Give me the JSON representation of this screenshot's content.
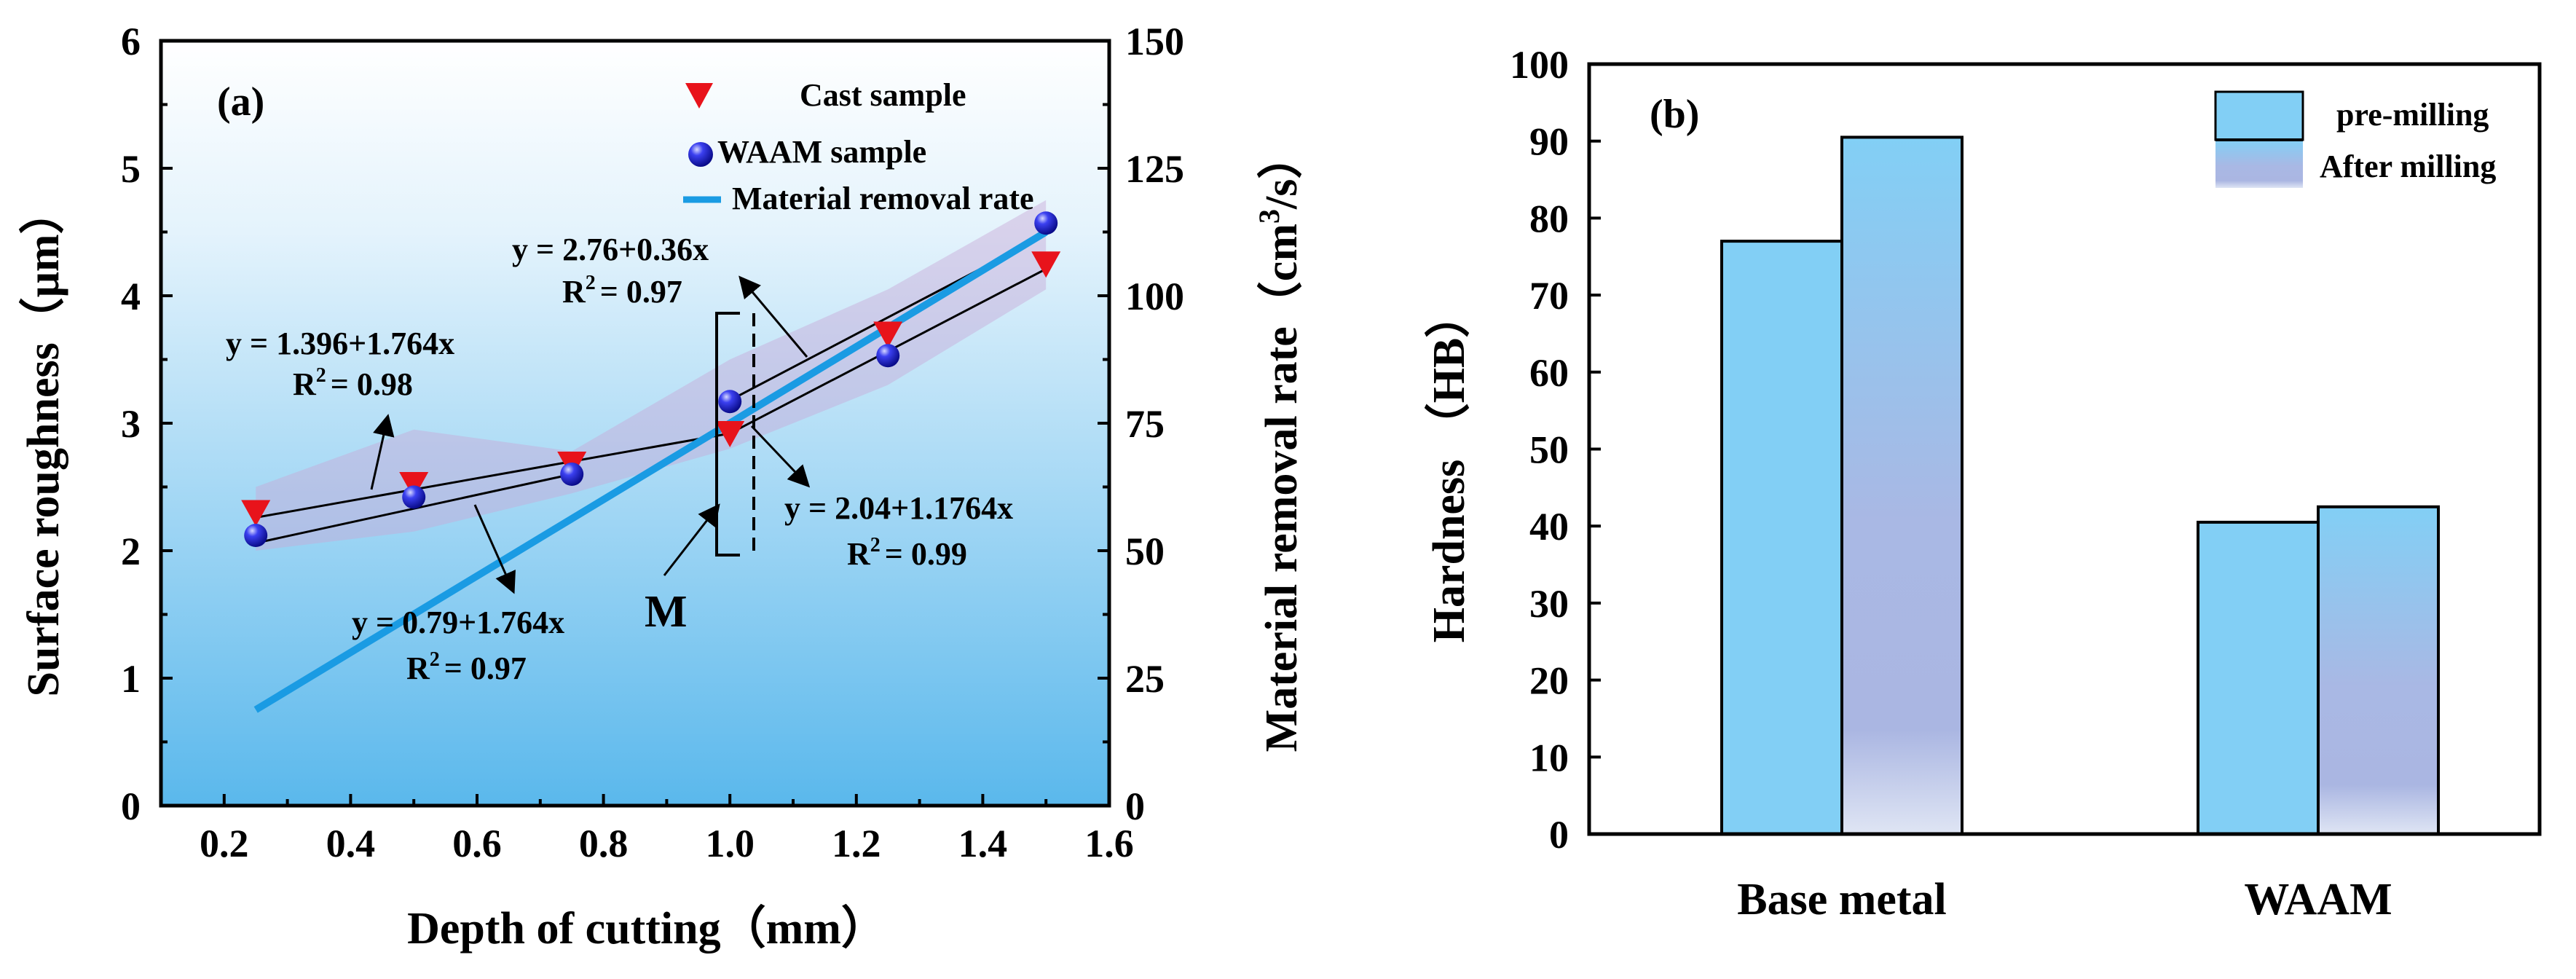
{
  "chart_data": [
    {
      "id": "a",
      "type": "scatter",
      "panel_label": "(a)",
      "xlabel": "Depth of cutting（mm）",
      "ylabel_left": "Surface roughness（μm）",
      "ylabel_right_main": "Material removal rate（cm",
      "ylabel_right_sup": "3",
      "ylabel_right_end": "/s）",
      "xlim": [
        0.1,
        1.6
      ],
      "ylim_left": [
        0,
        6
      ],
      "ylim_right": [
        0,
        150
      ],
      "x_ticks": [
        "0.2",
        "0.4",
        "0.6",
        "0.8",
        "1.0",
        "1.2",
        "1.4",
        "1.6"
      ],
      "x_tick_values": [
        0.2,
        0.4,
        0.6,
        0.8,
        1.0,
        1.2,
        1.4,
        1.6
      ],
      "y_left_ticks": [
        "0",
        "1",
        "2",
        "3",
        "4",
        "5",
        "6"
      ],
      "y_left_tick_values": [
        0,
        1,
        2,
        3,
        4,
        5,
        6
      ],
      "y_right_ticks": [
        "0",
        "25",
        "50",
        "75",
        "100",
        "125",
        "150"
      ],
      "y_right_tick_values": [
        0,
        25,
        50,
        75,
        100,
        125,
        150
      ],
      "series": [
        {
          "name": "Cast  sample",
          "marker": "triangle-down",
          "color": "#e8131b",
          "x": [
            0.25,
            0.5,
            0.75,
            1.0,
            1.25,
            1.5
          ],
          "y": [
            2.3,
            2.52,
            2.68,
            2.92,
            3.7,
            4.25
          ]
        },
        {
          "name": "WAAM sample",
          "marker": "circle",
          "color": "#2a2ee0",
          "x": [
            0.25,
            0.5,
            0.75,
            1.0,
            1.25,
            1.5
          ],
          "y": [
            2.12,
            2.42,
            2.6,
            3.17,
            3.53,
            4.57
          ]
        },
        {
          "name": "Material removal rate",
          "marker": "line",
          "color": "#1a9be3",
          "axis": "right",
          "x": [
            0.25,
            1.5
          ],
          "y": [
            18.8,
            112.5
          ]
        }
      ],
      "fit_lines": [
        {
          "x": [
            0.25,
            1.0
          ],
          "y": [
            2.26,
            2.92
          ]
        },
        {
          "x": [
            0.25,
            0.75
          ],
          "y": [
            2.06,
            2.6
          ]
        },
        {
          "x": [
            1.0,
            1.5
          ],
          "y": [
            3.18,
            4.48
          ]
        },
        {
          "x": [
            1.0,
            1.5
          ],
          "y": [
            2.92,
            4.21
          ]
        }
      ],
      "band": {
        "x": [
          0.25,
          0.5,
          0.75,
          1.0,
          1.25,
          1.5
        ],
        "upper": [
          2.5,
          2.95,
          2.78,
          3.5,
          4.05,
          4.75
        ],
        "lower": [
          2.0,
          2.15,
          2.45,
          2.8,
          3.3,
          4.05
        ]
      },
      "annotations": {
        "eq1": "y = 1.396+1.764x",
        "eq1_r2_main": "R",
        "eq1_r2_sup": "2",
        "eq1_r2_end": "= 0.98",
        "eq2": "y = 0.79+1.764x",
        "eq2_r2_main": "R",
        "eq2_r2_sup": "2",
        "eq2_r2_end": "= 0.97",
        "eq3": "y = 2.76+0.36x",
        "eq3_r2_main": "R",
        "eq3_r2_sup": "2",
        "eq3_r2_end": "= 0.97",
        "eq4": "y = 2.04+1.1764x",
        "eq4_r2_main": "R",
        "eq4_r2_sup": "2",
        "eq4_r2_end": "= 0.99",
        "m_label": "M"
      },
      "colors": {
        "bg_top": "#ffffff",
        "bg_bottom": "#5ab8ec"
      }
    },
    {
      "id": "b",
      "type": "bar",
      "panel_label": "(b)",
      "ylabel": "Hardness （HB）",
      "categories": [
        "Base metal",
        "WAAM"
      ],
      "series": [
        {
          "name": "pre-milling",
          "values": [
            77,
            40.5
          ],
          "color": "#82cff5"
        },
        {
          "name": "After milling",
          "values": [
            90.5,
            42.5
          ],
          "color": "#a9b8e4"
        }
      ],
      "ylim": [
        0,
        100
      ],
      "y_ticks": [
        "0",
        "10",
        "20",
        "30",
        "40",
        "50",
        "60",
        "70",
        "80",
        "90",
        "100"
      ],
      "y_tick_values": [
        0,
        10,
        20,
        30,
        40,
        50,
        60,
        70,
        80,
        90,
        100
      ]
    }
  ]
}
